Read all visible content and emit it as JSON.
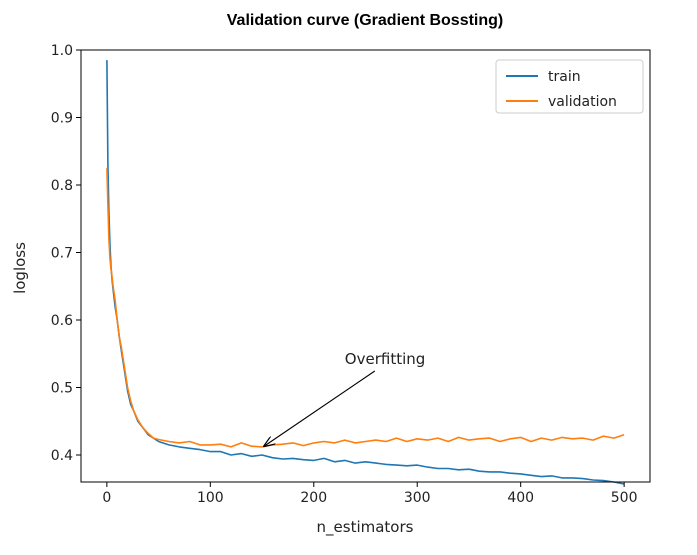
{
  "chart_data": {
    "type": "line",
    "title": "Validation curve (Gradient Bossting)",
    "xlabel": "n_estimators",
    "ylabel": "logloss",
    "xlim": [
      -25,
      525
    ],
    "ylim": [
      0.36,
      1.0
    ],
    "xticks": [
      0,
      100,
      200,
      300,
      400,
      500
    ],
    "yticks": [
      0.4,
      0.5,
      0.6,
      0.7,
      0.8,
      0.9,
      1.0
    ],
    "xtick_labels": [
      "0",
      "100",
      "200",
      "300",
      "400",
      "500"
    ],
    "ytick_labels": [
      "0.4",
      "0.5",
      "0.6",
      "0.7",
      "0.8",
      "0.9",
      "1.0"
    ],
    "grid": false,
    "legend_position": "top-right",
    "series": [
      {
        "name": "train",
        "color": "#1f77b4",
        "x": [
          0,
          1,
          2,
          3,
          4,
          5,
          6,
          8,
          10,
          12,
          14,
          16,
          18,
          20,
          23,
          26,
          30,
          35,
          40,
          45,
          50,
          60,
          70,
          80,
          90,
          100,
          110,
          120,
          130,
          140,
          150,
          160,
          170,
          180,
          190,
          200,
          210,
          220,
          230,
          240,
          250,
          260,
          270,
          280,
          290,
          300,
          310,
          320,
          330,
          340,
          350,
          360,
          370,
          380,
          390,
          400,
          410,
          420,
          430,
          440,
          450,
          460,
          470,
          480,
          490,
          500
        ],
        "y": [
          0.985,
          0.83,
          0.76,
          0.71,
          0.68,
          0.66,
          0.645,
          0.62,
          0.6,
          0.575,
          0.555,
          0.535,
          0.515,
          0.495,
          0.475,
          0.465,
          0.45,
          0.44,
          0.43,
          0.425,
          0.42,
          0.415,
          0.412,
          0.41,
          0.408,
          0.405,
          0.405,
          0.4,
          0.402,
          0.398,
          0.4,
          0.396,
          0.394,
          0.395,
          0.393,
          0.392,
          0.395,
          0.39,
          0.392,
          0.388,
          0.39,
          0.388,
          0.386,
          0.385,
          0.384,
          0.385,
          0.382,
          0.38,
          0.38,
          0.378,
          0.379,
          0.376,
          0.375,
          0.375,
          0.373,
          0.372,
          0.37,
          0.368,
          0.369,
          0.366,
          0.366,
          0.365,
          0.363,
          0.362,
          0.36,
          0.357
        ]
      },
      {
        "name": "validation",
        "color": "#ff7f0e",
        "x": [
          0,
          1,
          2,
          3,
          4,
          5,
          6,
          8,
          10,
          12,
          14,
          16,
          18,
          20,
          23,
          26,
          30,
          35,
          40,
          45,
          50,
          60,
          70,
          80,
          90,
          100,
          110,
          120,
          130,
          140,
          150,
          160,
          170,
          180,
          190,
          200,
          210,
          220,
          230,
          240,
          250,
          260,
          270,
          280,
          290,
          300,
          310,
          320,
          330,
          340,
          350,
          360,
          370,
          380,
          390,
          400,
          410,
          420,
          430,
          440,
          450,
          460,
          470,
          480,
          490,
          500
        ],
        "y": [
          0.825,
          0.77,
          0.72,
          0.69,
          0.675,
          0.665,
          0.65,
          0.63,
          0.6,
          0.575,
          0.56,
          0.54,
          0.52,
          0.5,
          0.48,
          0.465,
          0.452,
          0.44,
          0.432,
          0.425,
          0.423,
          0.42,
          0.418,
          0.42,
          0.415,
          0.415,
          0.416,
          0.412,
          0.418,
          0.413,
          0.412,
          0.415,
          0.416,
          0.418,
          0.414,
          0.418,
          0.42,
          0.418,
          0.422,
          0.418,
          0.42,
          0.422,
          0.42,
          0.425,
          0.42,
          0.424,
          0.422,
          0.425,
          0.42,
          0.426,
          0.422,
          0.424,
          0.425,
          0.42,
          0.424,
          0.426,
          0.42,
          0.425,
          0.422,
          0.426,
          0.424,
          0.425,
          0.422,
          0.428,
          0.425,
          0.43
        ]
      }
    ],
    "annotations": [
      {
        "text": "Overfitting",
        "xy": [
          150,
          0.41
        ],
        "xytext": [
          230,
          0.52
        ]
      }
    ]
  }
}
